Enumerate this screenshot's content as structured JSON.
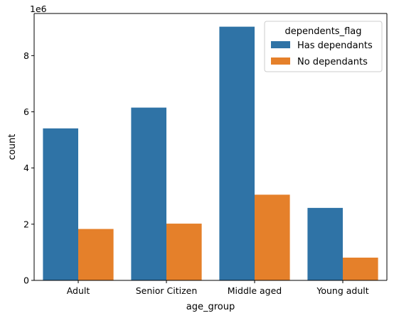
{
  "chart_data": {
    "type": "bar",
    "categories": [
      "Adult",
      "Senior Citizen",
      "Middle aged",
      "Young adult"
    ],
    "series": [
      {
        "name": "Has dependants",
        "color": "#2f73a6",
        "values": [
          5.41,
          6.15,
          9.03,
          2.58
        ]
      },
      {
        "name": "No dependants",
        "color": "#e5802a",
        "values": [
          1.83,
          2.02,
          3.05,
          0.81
        ]
      }
    ],
    "xlabel": "age_group",
    "ylabel": "count",
    "y_multiplier": "1e6",
    "ylim": [
      0,
      9.5
    ],
    "yticks": [
      0,
      2,
      4,
      6,
      8
    ],
    "grid": false,
    "legend": {
      "title": "dependents_flag",
      "placement": "top-right"
    }
  }
}
